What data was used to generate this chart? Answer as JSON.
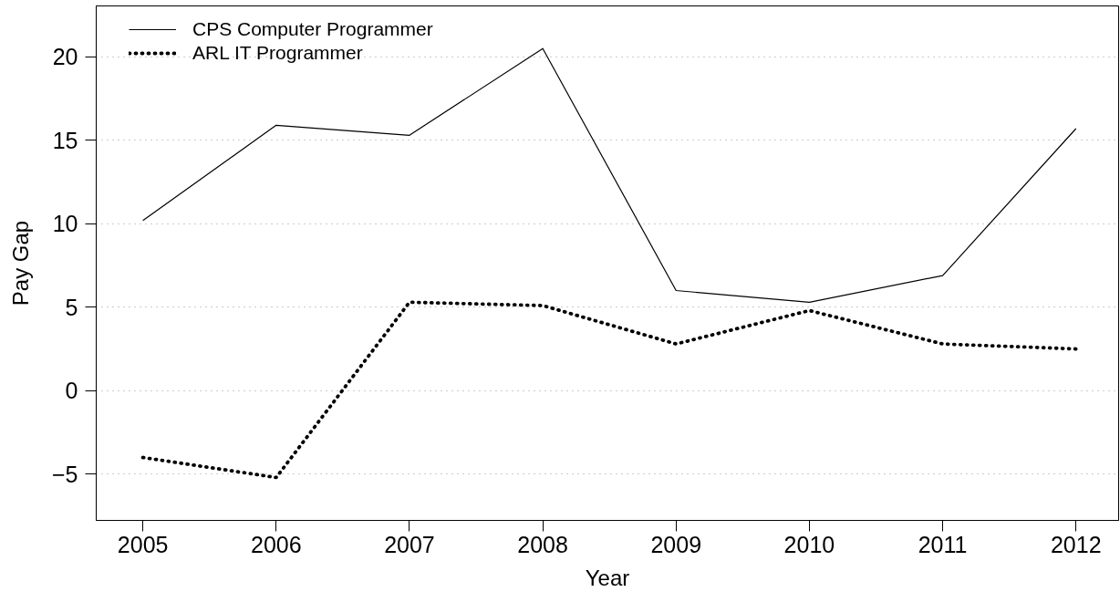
{
  "chart_data": {
    "type": "line",
    "xlabel": "Year",
    "ylabel": "Pay Gap",
    "x": [
      2005,
      2006,
      2007,
      2008,
      2009,
      2010,
      2011,
      2012
    ],
    "series": [
      {
        "name": "CPS Computer Programmer",
        "color": "#000000",
        "line_style": "solid",
        "values": [
          10.2,
          15.9,
          15.3,
          20.5,
          6.0,
          5.3,
          6.9,
          15.7
        ]
      },
      {
        "name": "ARL IT Programmer",
        "color": "#000000",
        "line_style": "dotted",
        "values": [
          -4.0,
          -5.2,
          5.3,
          5.1,
          2.8,
          4.8,
          2.8,
          2.5
        ]
      }
    ],
    "xlim": [
      2004.65,
      2012.32
    ],
    "ylim": [
      -7.77,
      23.05
    ],
    "xticks": [
      2005,
      2006,
      2007,
      2008,
      2009,
      2010,
      2011,
      2012
    ],
    "yticks": [
      {
        "value": -5,
        "label": "−5"
      },
      0,
      5,
      10,
      15,
      20
    ],
    "grid": "y",
    "legend": "top left"
  }
}
